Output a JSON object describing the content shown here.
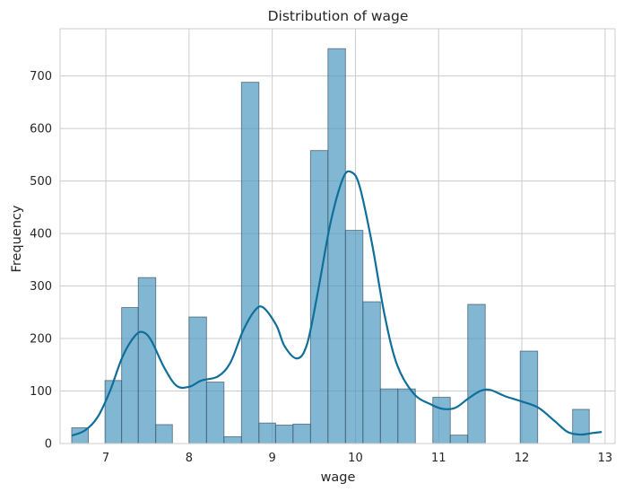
{
  "chart_data": {
    "type": "bar",
    "title": "Distribution of wage",
    "xlabel": "wage",
    "ylabel": "Frequency",
    "xlim": [
      6.45,
      13.12
    ],
    "ylim": [
      0,
      790
    ],
    "x_ticks": [
      7,
      8,
      9,
      10,
      11,
      12,
      13
    ],
    "y_ticks": [
      0,
      100,
      200,
      300,
      400,
      500,
      600,
      700
    ],
    "grid": true,
    "bar_color": "#4c98c0",
    "bar_edge_color": "#3d5566",
    "kde_color": "#0f6f9a",
    "bins": [
      {
        "x0": 6.59,
        "x1": 6.79,
        "count": 30
      },
      {
        "x0": 6.79,
        "x1": 6.99,
        "count": 0
      },
      {
        "x0": 6.99,
        "x1": 7.19,
        "count": 120
      },
      {
        "x0": 7.19,
        "x1": 7.39,
        "count": 259
      },
      {
        "x0": 7.39,
        "x1": 7.6,
        "count": 316
      },
      {
        "x0": 7.6,
        "x1": 7.8,
        "count": 36
      },
      {
        "x0": 7.8,
        "x1": 8.0,
        "count": 0
      },
      {
        "x0": 8.0,
        "x1": 8.21,
        "count": 241
      },
      {
        "x0": 8.21,
        "x1": 8.42,
        "count": 117
      },
      {
        "x0": 8.42,
        "x1": 8.63,
        "count": 13
      },
      {
        "x0": 8.63,
        "x1": 8.84,
        "count": 688
      },
      {
        "x0": 8.84,
        "x1": 9.04,
        "count": 39
      },
      {
        "x0": 9.04,
        "x1": 9.25,
        "count": 35
      },
      {
        "x0": 9.25,
        "x1": 9.46,
        "count": 37
      },
      {
        "x0": 9.46,
        "x1": 9.67,
        "count": 558
      },
      {
        "x0": 9.67,
        "x1": 9.88,
        "count": 752
      },
      {
        "x0": 9.88,
        "x1": 10.09,
        "count": 406
      },
      {
        "x0": 10.09,
        "x1": 10.3,
        "count": 270
      },
      {
        "x0": 10.3,
        "x1": 10.51,
        "count": 104
      },
      {
        "x0": 10.51,
        "x1": 10.72,
        "count": 104
      },
      {
        "x0": 10.72,
        "x1": 10.93,
        "count": 0
      },
      {
        "x0": 10.93,
        "x1": 11.14,
        "count": 88
      },
      {
        "x0": 11.14,
        "x1": 11.35,
        "count": 16
      },
      {
        "x0": 11.35,
        "x1": 11.56,
        "count": 265
      },
      {
        "x0": 11.56,
        "x1": 11.77,
        "count": 0
      },
      {
        "x0": 11.77,
        "x1": 11.98,
        "count": 0
      },
      {
        "x0": 11.98,
        "x1": 12.19,
        "count": 176
      },
      {
        "x0": 12.19,
        "x1": 12.4,
        "count": 0
      },
      {
        "x0": 12.4,
        "x1": 12.61,
        "count": 0
      },
      {
        "x0": 12.61,
        "x1": 12.81,
        "count": 65
      }
    ],
    "kde": [
      {
        "x": 6.59,
        "y": 15
      },
      {
        "x": 6.75,
        "y": 25
      },
      {
        "x": 6.9,
        "y": 50
      },
      {
        "x": 7.05,
        "y": 100
      },
      {
        "x": 7.2,
        "y": 165
      },
      {
        "x": 7.35,
        "y": 205
      },
      {
        "x": 7.45,
        "y": 212
      },
      {
        "x": 7.55,
        "y": 195
      },
      {
        "x": 7.7,
        "y": 145
      },
      {
        "x": 7.85,
        "y": 110
      },
      {
        "x": 8.0,
        "y": 108
      },
      {
        "x": 8.15,
        "y": 120
      },
      {
        "x": 8.35,
        "y": 128
      },
      {
        "x": 8.5,
        "y": 155
      },
      {
        "x": 8.65,
        "y": 215
      },
      {
        "x": 8.8,
        "y": 255
      },
      {
        "x": 8.9,
        "y": 258
      },
      {
        "x": 9.05,
        "y": 225
      },
      {
        "x": 9.15,
        "y": 185
      },
      {
        "x": 9.3,
        "y": 162
      },
      {
        "x": 9.42,
        "y": 190
      },
      {
        "x": 9.55,
        "y": 290
      },
      {
        "x": 9.7,
        "y": 420
      },
      {
        "x": 9.85,
        "y": 505
      },
      {
        "x": 9.95,
        "y": 517
      },
      {
        "x": 10.05,
        "y": 490
      },
      {
        "x": 10.2,
        "y": 380
      },
      {
        "x": 10.35,
        "y": 245
      },
      {
        "x": 10.5,
        "y": 150
      },
      {
        "x": 10.7,
        "y": 95
      },
      {
        "x": 10.9,
        "y": 75
      },
      {
        "x": 11.05,
        "y": 66
      },
      {
        "x": 11.2,
        "y": 68
      },
      {
        "x": 11.35,
        "y": 85
      },
      {
        "x": 11.5,
        "y": 100
      },
      {
        "x": 11.62,
        "y": 102
      },
      {
        "x": 11.8,
        "y": 90
      },
      {
        "x": 12.0,
        "y": 80
      },
      {
        "x": 12.2,
        "y": 68
      },
      {
        "x": 12.4,
        "y": 42
      },
      {
        "x": 12.55,
        "y": 22
      },
      {
        "x": 12.7,
        "y": 17
      },
      {
        "x": 12.85,
        "y": 20
      },
      {
        "x": 12.96,
        "y": 22
      }
    ]
  }
}
